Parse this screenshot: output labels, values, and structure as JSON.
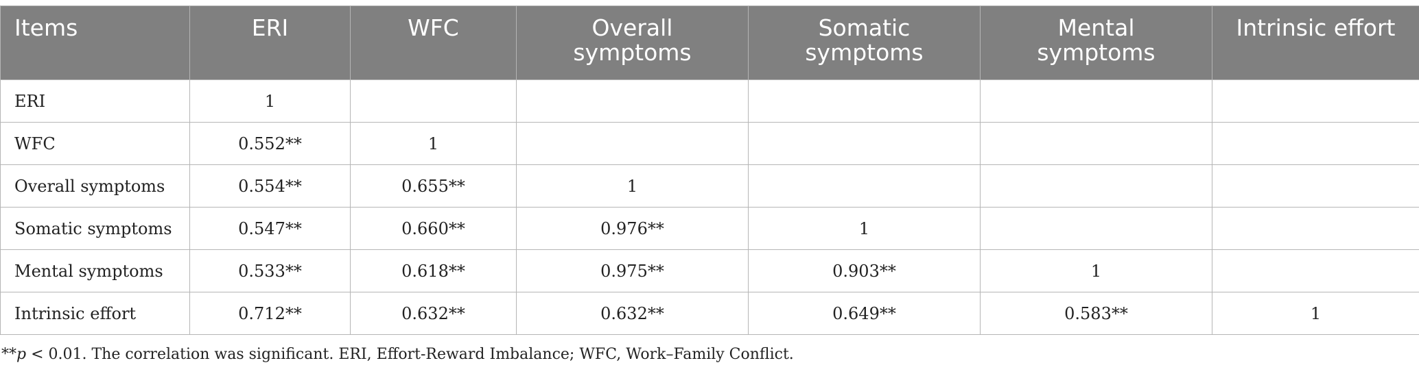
{
  "table": {
    "headers": [
      "Items",
      "ERI",
      "WFC",
      "Overall symptoms",
      "Somatic symptoms",
      "Mental symptoms",
      "Intrinsic effort"
    ],
    "rows": [
      [
        "ERI",
        "1",
        "",
        "",
        "",
        "",
        ""
      ],
      [
        "WFC",
        "0.552**",
        "1",
        "",
        "",
        "",
        ""
      ],
      [
        "Overall symptoms",
        "0.554**",
        "0.655**",
        "1",
        "",
        "",
        ""
      ],
      [
        "Somatic symptoms",
        "0.547**",
        "0.660**",
        "0.976**",
        "1",
        "",
        ""
      ],
      [
        "Mental symptoms",
        "0.533**",
        "0.618**",
        "0.975**",
        "0.903**",
        "1",
        ""
      ],
      [
        "Intrinsic effort",
        "0.712**",
        "0.632**",
        "0.632**",
        "0.649**",
        "0.583**",
        "1"
      ]
    ]
  },
  "footnote": {
    "prefix": "**",
    "p_symbol": "p",
    "text": " < 0.01. The correlation was significant. ERI, Effort-Reward Imbalance; WFC, Work–Family Conflict."
  }
}
